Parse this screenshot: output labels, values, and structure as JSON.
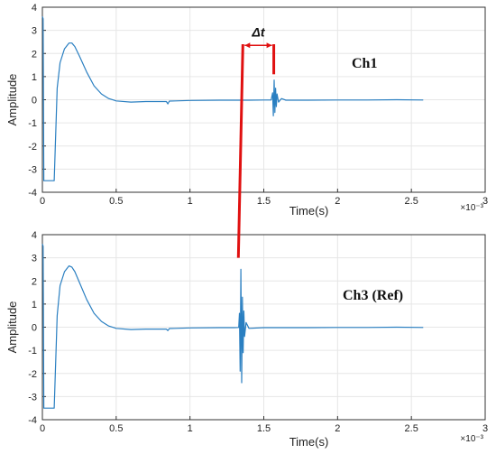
{
  "colors": {
    "signal": "#2a7fc1",
    "marker": "#e01010",
    "grid": "#e6e6e6"
  },
  "annotations": {
    "delta_label": "Δt"
  },
  "chart_data": [
    {
      "type": "line",
      "title": "",
      "xlabel": "Time(s)",
      "ylabel": "Amplitude",
      "x_exponent": "×10⁻³",
      "xlim": [
        0,
        3
      ],
      "ylim": [
        -4,
        4
      ],
      "xticks": [
        "0",
        "0.5",
        "1",
        "1.5",
        "2",
        "2.5",
        "3"
      ],
      "yticks": [
        "-4",
        "-3",
        "-2",
        "-1",
        "0",
        "1",
        "2",
        "3",
        "4"
      ],
      "grid": true,
      "channel_label": "Ch1",
      "series": [
        {
          "x": [
            0,
            0.005,
            0.01,
            0.02,
            0.05,
            0.08,
            0.1,
            0.12,
            0.15,
            0.18,
            0.2,
            0.22,
            0.25,
            0.3,
            0.35,
            0.4,
            0.45,
            0.5,
            0.6,
            0.7,
            0.8,
            0.84,
            0.85,
            0.86,
            0.9,
            1.0,
            1.2,
            1.4,
            1.5,
            1.55,
            1.56,
            1.565,
            1.57,
            1.575,
            1.58,
            1.585,
            1.59,
            1.6,
            1.62,
            1.65,
            1.8,
            2.0,
            2.2,
            2.4,
            2.58
          ],
          "y": [
            3.6,
            3.5,
            -3.5,
            -3.5,
            -3.5,
            -3.5,
            0.5,
            1.6,
            2.2,
            2.45,
            2.45,
            2.3,
            1.9,
            1.2,
            0.6,
            0.25,
            0.05,
            -0.05,
            -0.1,
            -0.08,
            -0.08,
            -0.08,
            -0.18,
            -0.06,
            -0.05,
            -0.03,
            -0.02,
            -0.02,
            -0.01,
            -0.01,
            0.3,
            -0.7,
            0.85,
            -0.55,
            0.5,
            -0.3,
            0.25,
            -0.1,
            0.05,
            -0.02,
            -0.02,
            -0.01,
            -0.01,
            0.0,
            -0.01
          ]
        }
      ]
    },
    {
      "type": "line",
      "title": "",
      "xlabel": "Time(s)",
      "ylabel": "Amplitude",
      "x_exponent": "×10⁻³",
      "xlim": [
        0,
        3
      ],
      "ylim": [
        -4,
        4
      ],
      "xticks": [
        "0",
        "0.5",
        "1",
        "1.5",
        "2",
        "2.5",
        "3"
      ],
      "yticks": [
        "-4",
        "-3",
        "-2",
        "-1",
        "0",
        "1",
        "2",
        "3",
        "4"
      ],
      "grid": true,
      "channel_label": "Ch3 (Ref)",
      "series": [
        {
          "x": [
            0,
            0.005,
            0.01,
            0.02,
            0.05,
            0.08,
            0.1,
            0.12,
            0.15,
            0.18,
            0.2,
            0.22,
            0.25,
            0.3,
            0.35,
            0.4,
            0.45,
            0.5,
            0.6,
            0.7,
            0.8,
            0.84,
            0.85,
            0.86,
            0.9,
            1.0,
            1.2,
            1.3,
            1.33,
            1.335,
            1.34,
            1.345,
            1.35,
            1.355,
            1.36,
            1.365,
            1.37,
            1.38,
            1.4,
            1.5,
            1.8,
            2.0,
            2.2,
            2.4,
            2.58
          ],
          "y": [
            3.6,
            3.5,
            -3.5,
            -3.5,
            -3.5,
            -3.5,
            0.5,
            1.8,
            2.4,
            2.65,
            2.6,
            2.4,
            1.95,
            1.2,
            0.6,
            0.25,
            0.05,
            -0.05,
            -0.1,
            -0.08,
            -0.08,
            -0.08,
            -0.15,
            -0.06,
            -0.05,
            -0.03,
            -0.02,
            -0.02,
            -0.01,
            0.6,
            -1.9,
            2.5,
            -2.4,
            1.3,
            -1.1,
            0.7,
            -0.4,
            0.2,
            -0.05,
            -0.02,
            -0.02,
            -0.01,
            -0.01,
            0.0,
            -0.01
          ]
        }
      ]
    }
  ]
}
